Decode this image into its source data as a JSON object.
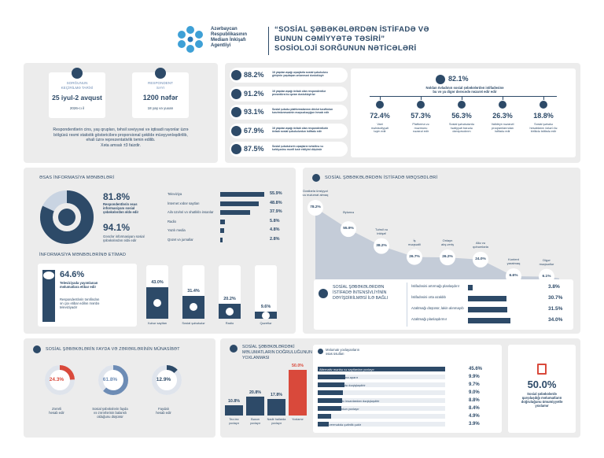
{
  "header": {
    "agency": [
      "Azərbaycan",
      "Respublikasının",
      "Mediaın İnkişafı",
      "Agentliyi"
    ],
    "title_lines": [
      "“SOSİAL ŞƏBƏKƏLƏRDƏN İSTİFADƏ VƏ",
      "BUNUN CƏMİYYƏTƏ TƏSİRİ”",
      "SOSİOLOJİ SORĞUNUN NƏTİCƏLƏRİ"
    ]
  },
  "survey": {
    "date_label": [
      "SORĞUNUN",
      "KEÇİRİLMƏ TARİXİ"
    ],
    "date_value": "25 iyul-2 avqust",
    "date_year": "2026-cı il",
    "resp_label": [
      "RESPONDENT",
      "SAYI"
    ],
    "resp_value": "1200 nəfər",
    "resp_age": "18 yaş və yuxarı",
    "note": [
      "Respondentlərin cins, yaş qrupları, təhsil səviyyəsi və iqtisadi rayonlar üzrə",
      "bölgüsü rəsmi statistik göstəricilərə proporsional şəkildə müəyyənləşdirilib,",
      "ehali üzrə reprezentativlik təmin edilib.",
      "Xəta amsalı ±3 faizdir."
    ]
  },
  "stats": [
    {
      "value": "88.2%",
      "text": [
        "16 yaşdan aşağı uşaqlarla sosial şəbəkələrə",
        "girişinin yaşdaşan ənlənməsi dəstəkləyir"
      ]
    },
    {
      "value": "91.2%",
      "text": [
        "16 yaşdan aşağı övladı olan respondentlər",
        "prosedüra bu qərarı dəstəkləyirlər"
      ]
    },
    {
      "value": "93.1%",
      "text": [
        "Sosial şəbəkə platformalarının dövlət tərəfindən",
        "tənzimlənməsinin məqsədəuyğun hesab edir"
      ]
    },
    {
      "value": "67.9%",
      "text": [
        "16 yaşdan aşağı övladı olan respondentlərin",
        "övladı sosial şəbəkələrdən istifadə edir"
      ]
    },
    {
      "value": "87.5%",
      "text": [
        "Sosial şəbəkələrin uşaqların təhsilinə və",
        "tərbiyəsinə mənfi təsir etdiyini düşünür"
      ]
    }
  ],
  "users": {
    "value": "82.1%",
    "text": [
      "Noldan övladının sosial şəbəkələrdən istifadəsinə",
      "bu və ya digər dərəcədə nəzarət edir edir"
    ],
    "items": [
      {
        "value": "72.4%",
        "text": [
          "Vaxt",
          "məhdudiyyəti",
          "təyin edir"
        ]
      },
      {
        "value": "57.3%",
        "text": [
          "Platforma və",
          "məzmunu",
          "nəzarət edir"
        ]
      },
      {
        "value": "56.3%",
        "text": [
          "Sosial şəbəkələrdə",
          "fəaliyyəti barədə",
          "danışırsıdırım"
        ]
      },
      {
        "value": "26.3%",
        "text": [
          "Valideyn nəzarəti",
          "proqramlarından",
          "istifadə edir"
        ]
      },
      {
        "value": "18.8%",
        "text": [
          "Sosial şəbəkə",
          "hesablarını özlərü ilə",
          "birlikdə istifadə edir"
        ]
      }
    ]
  },
  "sources": {
    "title": "ƏSAS İNFORMASİYA MƏNBƏLƏRİ",
    "big1": "81.8%",
    "big1_text": [
      "Respondentlərin əsas",
      "informasiyanı sosial",
      "şəbəkələrdən əldə edir"
    ],
    "big2": "94.1%",
    "big2_text": [
      "Gənclər informasiyanı sosial",
      "şəbəkələrdən əldə edir"
    ],
    "rows": [
      {
        "label": "Televiziya",
        "value": "55.9%",
        "frac": 0.559
      },
      {
        "label": "İnternet xəbər saytları",
        "value": "48.8%",
        "frac": 0.488
      },
      {
        "label": "Ailə üzvləri və əhatlıklə insanlar",
        "value": "37.9%",
        "frac": 0.379
      },
      {
        "label": "Radio",
        "value": "5.8%",
        "frac": 0.058
      },
      {
        "label": "Yazılı media",
        "value": "4.8%",
        "frac": 0.048
      },
      {
        "label": "Qəzet və jurnallar",
        "value": "2.8%",
        "frac": 0.028
      }
    ]
  },
  "trust": {
    "title": "İNFORMASİYA MƏNBƏLƏRİNƏ ETİMAD",
    "big": "64.6%",
    "big_text": [
      "Televiziyada yayımlanan",
      "məlumatlara etibar edir"
    ],
    "sub_text": [
      "Respondentlərin tərəfindən",
      "ən çox etibar edilən mənbə",
      "televiziyadır"
    ],
    "bars": [
      {
        "value": "43.0%",
        "label": "Xəbər saytları",
        "frac": 0.43
      },
      {
        "value": "31.4%",
        "label": "Sosial şəbəkələr",
        "frac": 0.314
      },
      {
        "value": "20.2%",
        "label": "Radio",
        "frac": 0.202
      },
      {
        "value": "9.6%",
        "label": "Qəzetlər",
        "frac": 0.096
      }
    ]
  },
  "purposes": {
    "title": "SOSİAL ŞƏBƏKƏLƏRDƏN İSTİFADƏ MƏQSƏDLƏRİ",
    "points": [
      {
        "value": "78.2%",
        "label": [
          "Dostlarla ünsiyyət",
          "və məlumat almaq"
        ]
      },
      {
        "value": "55.9%",
        "label": [
          "Əyləncə"
        ]
      },
      {
        "value": "38.2%",
        "label": [
          "Təhsil və",
          "inkişaf"
        ]
      },
      {
        "value": "26.7%",
        "label": [
          "İş",
          "məqsədli"
        ]
      },
      {
        "value": "26.2%",
        "label": [
          "Onlayn",
          "alış-veriş"
        ]
      },
      {
        "value": "24.0%",
        "label": [
          "Ailə və",
          "qohumlarla"
        ]
      },
      {
        "value": "6.6%",
        "label": [
          "Kontent",
          "yaratmaq"
        ]
      },
      {
        "value": "6.1%",
        "label": [
          "Digər",
          "məqsədlər"
        ]
      }
    ]
  },
  "intensity": {
    "title": [
      "SOSİAL ŞƏBƏKƏLƏRDƏN",
      "İSTİFADƏ İNTENSİVLİYİNİN",
      "DƏYİŞDİRİLMƏSİ İLƏ BAĞLI"
    ],
    "rows": [
      {
        "label": "İstifadəsini artırmağı planlaşdırır",
        "value": "3.8%",
        "frac": 0.038
      },
      {
        "label": "İstifadəsini orta azaldıb",
        "value": "30.7%",
        "frac": 0.307
      },
      {
        "label": "Azaltmağı düşünür, lakin alınmayıb",
        "value": "31.5%",
        "frac": 0.315
      },
      {
        "label": "Azaltmağı planlaşdırmır",
        "value": "34.0%",
        "frac": 0.34
      }
    ]
  },
  "harm": {
    "title": "SOSİAL ŞƏBƏKƏLƏRİN FAYDA VƏ ZƏRƏRLƏRİNİN MÜNASİBƏT",
    "items": [
      {
        "value": "24.3%",
        "label": [
          "Zərərli",
          "hesab edir"
        ],
        "frac": 0.243,
        "color": "#d9493b"
      },
      {
        "value": "61.8%",
        "label": [
          "Sosial şəbəkələrin fayda",
          "və zərərlərinin balanslı",
          "olduğunu düşünür"
        ],
        "frac": 0.618,
        "color": "#6d8cb5"
      },
      {
        "value": "12.9%",
        "label": [
          "Faydalı",
          "hesab edir"
        ],
        "frac": 0.129,
        "color": "#2d4a68"
      }
    ]
  },
  "verify": {
    "title": [
      "SOSİAL ŞƏBƏKƏLƏRDƏKİ",
      "MƏLUMATLARIN DOĞRULUĞUNUN",
      "YOXLANMASI"
    ],
    "bars": [
      {
        "value": "10.8%",
        "label": [
          "Tez-tez",
          "yoxlayır"
        ],
        "frac": 0.108,
        "color": "#2d4a68"
      },
      {
        "value": "20.8%",
        "label": [
          "Bəzən",
          "yoxlayır"
        ],
        "frac": 0.208,
        "color": "#2d4a68"
      },
      {
        "value": "17.8%",
        "label": [
          "Nadir hallarda",
          "yoxlayır"
        ],
        "frac": 0.178,
        "color": "#2d4a68"
      },
      {
        "value": "50.0%",
        "label": [
          "Yoxlamır"
        ],
        "frac": 0.5,
        "color": "#d9493b"
      }
    ],
    "methods_title": [
      "Məlumatı yoxlayanların",
      "əsas üsulları"
    ],
    "methods": [
      {
        "label": "Alternativ mənbə və saytlardan yoxlayır",
        "value": "45.6%",
        "frac": 0.456
      },
      {
        "label": "Özü ətraflı araşdırma aparır",
        "value": "9.9%",
        "frac": 0.099
      },
      {
        "label": "Televiziya xəbərində dəqiqləşdirir",
        "value": "9.7%",
        "frac": 0.097
      },
      {
        "label": "Rəyləri oxuyur",
        "value": "9.0%",
        "frac": 0.09
      },
      {
        "label": "Ailə və ətrafındakı insanlardan dəqiqləşdirir",
        "value": "8.8%",
        "frac": 0.088
      },
      {
        "label": "Rəsmi mənbələrdən yoxlayır",
        "value": "8.4%",
        "frac": 0.084
      },
      {
        "label": "Digər",
        "value": "4.9%",
        "frac": 0.049
      },
      {
        "label": "Cavab verməkdə çətinlik çəkir",
        "value": "3.9%",
        "frac": 0.039
      }
    ],
    "fake": {
      "value": "50.0%",
      "text": [
        "Sosial şəbəkələrdə",
        "qarşılaşdığı məlumatların",
        "doğruluğunu ümumiyyətlə",
        "yoxlamır"
      ]
    }
  }
}
